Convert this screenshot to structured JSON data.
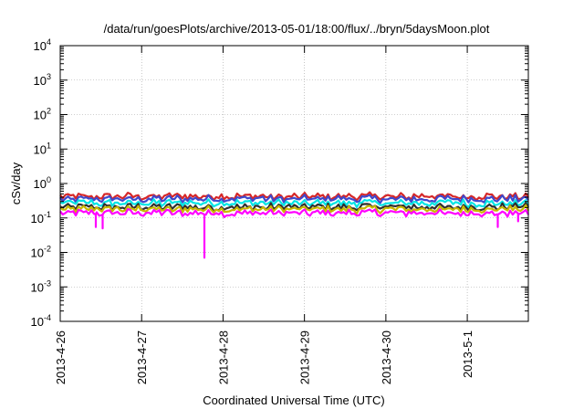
{
  "chart_data": {
    "type": "line",
    "title": "/data/run/goesPlots/archive/2013-05-01/18:00/flux/../bryn/5daysMoon.plot",
    "xlabel": "Coordinated Universal Time (UTC)",
    "ylabel": "cSv/day",
    "yscale": "log",
    "ylim": [
      "1e-4",
      "1e4"
    ],
    "xlim": [
      "2013-04-26T00:00",
      "2013-05-01T18:00"
    ],
    "grid": true,
    "legend": "none",
    "y_ticks": [
      {
        "base": "10",
        "exp": "-4",
        "value": 0.0001
      },
      {
        "base": "10",
        "exp": "-3",
        "value": 0.001
      },
      {
        "base": "10",
        "exp": "-2",
        "value": 0.01
      },
      {
        "base": "10",
        "exp": "-1",
        "value": 0.1
      },
      {
        "base": "10",
        "exp": "0",
        "value": 1
      },
      {
        "base": "10",
        "exp": "1",
        "value": 10
      },
      {
        "base": "10",
        "exp": "2",
        "value": 100
      },
      {
        "base": "10",
        "exp": "3",
        "value": 1000
      },
      {
        "base": "10",
        "exp": "4",
        "value": 10000
      }
    ],
    "x_ticks": [
      "2013-4-26",
      "2013-4-27",
      "2013-4-28",
      "2013-4-29",
      "2013-4-30",
      "2013-5-1"
    ],
    "series": [
      {
        "color": "#d62728",
        "baseline": 0.42,
        "dips": []
      },
      {
        "color": "#3f48cc",
        "baseline": 0.36,
        "dips": []
      },
      {
        "color": "#00e5e5",
        "baseline": 0.27,
        "dips": []
      },
      {
        "color": "#2f2f2f",
        "baseline": 0.21,
        "dips": []
      },
      {
        "color": "#c8b800",
        "baseline": 0.18,
        "dips": []
      },
      {
        "color": "#ff00ff",
        "baseline": 0.14,
        "dips": [
          {
            "date": "2013-04-26T10:30",
            "value": 0.055
          },
          {
            "date": "2013-04-26T12:30",
            "value": 0.05
          },
          {
            "date": "2013-04-27T18:30",
            "value": 0.007
          },
          {
            "date": "2013-05-01T09:00",
            "value": 0.055
          },
          {
            "date": "2013-05-01T15:00",
            "value": 0.08
          }
        ]
      }
    ]
  }
}
